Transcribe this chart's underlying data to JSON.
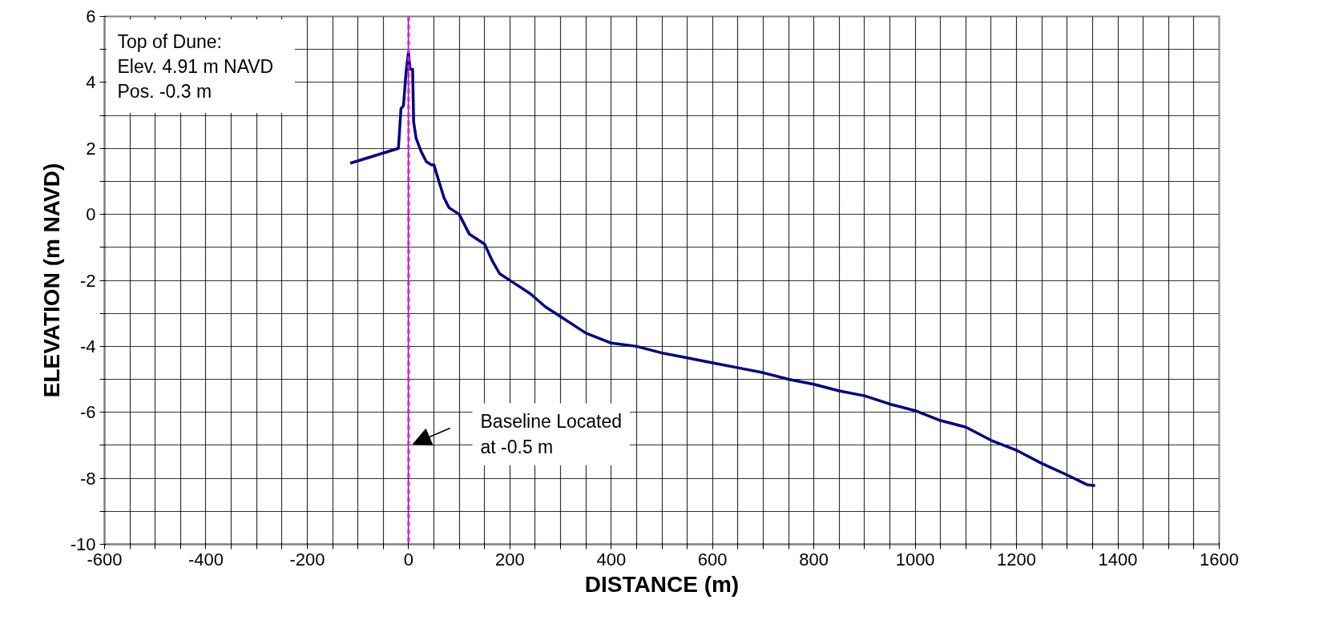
{
  "chart_data": {
    "type": "line",
    "xlabel": "DISTANCE (m)",
    "ylabel": "ELEVATION (m NAVD)",
    "x": [
      -115,
      -20,
      -15,
      -10,
      -5,
      -0.3,
      3,
      8,
      10,
      15,
      25,
      35,
      45,
      50,
      60,
      70,
      80,
      100,
      120,
      150,
      165,
      180,
      210,
      240,
      270,
      300,
      350,
      400,
      450,
      500,
      550,
      600,
      650,
      700,
      750,
      800,
      850,
      900,
      950,
      1000,
      1050,
      1100,
      1150,
      1200,
      1250,
      1300,
      1340,
      1355
    ],
    "series": [
      {
        "color": "#000080",
        "values": [
          1.55,
          2.0,
          3.2,
          3.3,
          4.3,
          4.91,
          4.4,
          4.4,
          2.8,
          2.3,
          1.9,
          1.6,
          1.5,
          1.5,
          1.0,
          0.5,
          0.2,
          0.0,
          -0.6,
          -0.9,
          -1.4,
          -1.8,
          -2.1,
          -2.4,
          -2.8,
          -3.1,
          -3.6,
          -3.9,
          -4.0,
          -4.2,
          -4.35,
          -4.5,
          -4.65,
          -4.8,
          -5.0,
          -5.15,
          -5.35,
          -5.5,
          -5.75,
          -5.95,
          -6.25,
          -6.45,
          -6.85,
          -7.15,
          -7.55,
          -7.9,
          -8.2,
          -8.22
        ]
      }
    ],
    "xlim": [
      -600,
      1600
    ],
    "ylim": [
      -10,
      6
    ],
    "xticks": [
      -600,
      {
        "value": -550,
        "label": null
      },
      -400,
      {
        "value": -500,
        "label": null
      },
      {
        "value": -450,
        "label": null
      },
      {
        "value": -350,
        "label": null
      },
      {
        "value": -300,
        "label": null
      },
      {
        "value": -250,
        "label": null
      },
      -200,
      {
        "value": -150,
        "label": null
      },
      {
        "value": -100,
        "label": null
      },
      {
        "value": -50,
        "label": null
      },
      0,
      {
        "value": 50,
        "label": null
      },
      {
        "value": 100,
        "label": null
      },
      {
        "value": 150,
        "label": null
      },
      200,
      {
        "value": 250,
        "label": null
      },
      {
        "value": 300,
        "label": null
      },
      {
        "value": 350,
        "label": null
      },
      400,
      {
        "value": 450,
        "label": null
      },
      {
        "value": 500,
        "label": null
      },
      {
        "value": 550,
        "label": null
      },
      600,
      {
        "value": 650,
        "label": null
      },
      {
        "value": 700,
        "label": null
      },
      {
        "value": 750,
        "label": null
      },
      800,
      {
        "value": 850,
        "label": null
      },
      {
        "value": 900,
        "label": null
      },
      {
        "value": 950,
        "label": null
      },
      1000,
      {
        "value": 1050,
        "label": null
      },
      {
        "value": 1100,
        "label": null
      },
      {
        "value": 1150,
        "label": null
      },
      1200,
      {
        "value": 1250,
        "label": null
      },
      {
        "value": 1300,
        "label": null
      },
      {
        "value": 1350,
        "label": null
      },
      1400,
      {
        "value": 1450,
        "label": null
      },
      {
        "value": 1500,
        "label": null
      },
      {
        "value": 1550,
        "label": null
      },
      1600
    ],
    "yticks": [
      -10,
      {
        "value": -9,
        "label": null
      },
      -8,
      {
        "value": -7,
        "label": null
      },
      -6,
      {
        "value": -5,
        "label": null
      },
      -4,
      {
        "value": -3,
        "label": null
      },
      -2,
      {
        "value": -1,
        "label": null
      },
      0,
      {
        "value": 1,
        "label": null
      },
      2,
      {
        "value": 3,
        "label": null
      },
      4,
      {
        "value": 5,
        "label": null
      },
      6
    ],
    "grid": true,
    "marker": "none",
    "line_style": "solid",
    "ref_lines": [
      {
        "axis": "x",
        "value": 0,
        "color": "#ff00ff",
        "line_style": "dashed"
      }
    ],
    "annotations": [
      "Top of Dune:\n  Elev. 4.91 m NAVD\n  Pos. -0.3 m",
      "Baseline Located\nat -0.5 m"
    ]
  }
}
